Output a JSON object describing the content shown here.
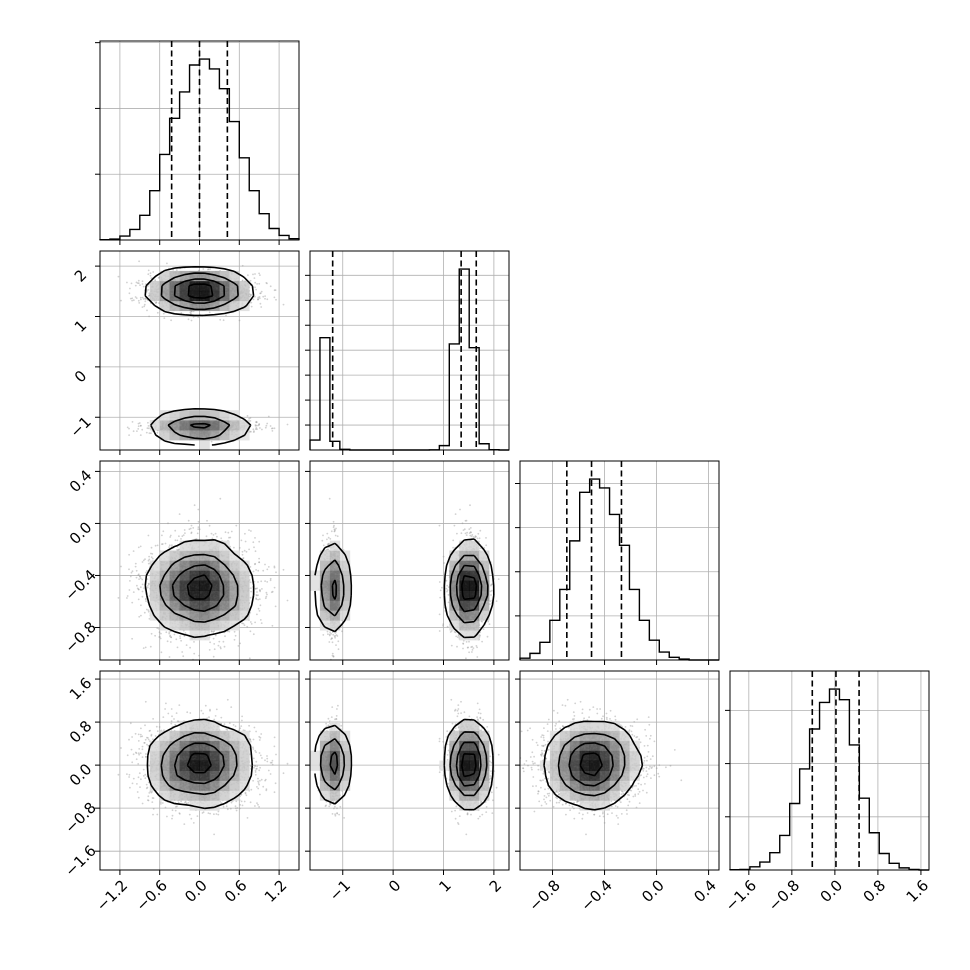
{
  "chart_data": {
    "type": "corner",
    "title": "",
    "dimensions": [
      {
        "id": "p0",
        "range": [
          -1.5,
          1.5
        ],
        "ticks": [
          -1.2,
          -0.6,
          0.0,
          0.6,
          1.2
        ],
        "tick_labels": [
          "−1.2",
          "−0.6",
          "0.0",
          "0.6",
          "1.2"
        ],
        "quantiles": [
          -0.42,
          0.0,
          0.42
        ]
      },
      {
        "id": "p1",
        "range": [
          -1.65,
          2.3
        ],
        "ticks": [
          -1,
          0,
          1,
          2
        ],
        "tick_labels": [
          "−1",
          "0",
          "1",
          "2"
        ],
        "quantiles": [
          -1.2,
          1.35,
          1.65
        ]
      },
      {
        "id": "p2",
        "range": [
          -1.05,
          0.48
        ],
        "ticks": [
          -0.8,
          -0.4,
          0.0,
          0.4
        ],
        "tick_labels": [
          "−0.8",
          "−0.4",
          "0.0",
          "0.4"
        ],
        "quantiles": [
          -0.69,
          -0.5,
          -0.27
        ]
      },
      {
        "id": "p3",
        "range": [
          -1.95,
          1.75
        ],
        "ticks": [
          -1.6,
          -0.8,
          0.0,
          0.8,
          1.6
        ],
        "tick_labels": [
          "−1.6",
          "−0.8",
          "0.0",
          "0.8",
          "1.6"
        ],
        "quantiles": [
          -0.42,
          0.02,
          0.45
        ]
      }
    ],
    "histograms": [
      {
        "dimension": "p0",
        "bin_edges": [
          -1.5,
          -1.35,
          -1.2,
          -1.05,
          -0.9,
          -0.75,
          -0.6,
          -0.45,
          -0.3,
          -0.15,
          0.0,
          0.15,
          0.3,
          0.45,
          0.6,
          0.75,
          0.9,
          1.05,
          1.2,
          1.35,
          1.5
        ],
        "counts": [
          1,
          3,
          12,
          32,
          75,
          150,
          260,
          370,
          450,
          532,
          550,
          520,
          460,
          360,
          250,
          150,
          80,
          35,
          14,
          4
        ],
        "y_ticks": [
          200,
          400,
          600
        ]
      },
      {
        "dimension": "p1",
        "bin_edges": [
          -1.65,
          -1.4525,
          -1.255,
          -1.0575,
          -0.86,
          -0.6625,
          -0.465,
          -0.2675,
          -0.07,
          0.1275,
          0.325,
          0.5225,
          0.72,
          0.9175,
          1.115,
          1.3125,
          1.51,
          1.7075,
          1.905,
          2.1025,
          2.3
        ],
        "counts": [
          80,
          900,
          70,
          5,
          0,
          0,
          0,
          0,
          0,
          0,
          0,
          0,
          1,
          35,
          850,
          1450,
          820,
          50,
          2,
          0
        ],
        "y_ticks": [
          200,
          400,
          600,
          800,
          1000,
          1200,
          1400
        ]
      },
      {
        "dimension": "p2",
        "bin_edges": [
          -1.05,
          -0.9735,
          -0.897,
          -0.8205,
          -0.744,
          -0.6675,
          -0.591,
          -0.5145,
          -0.438,
          -0.3615,
          -0.285,
          -0.2085,
          -0.132,
          -0.0555,
          0.021,
          0.0975,
          0.174,
          0.2505,
          0.327,
          0.4035,
          0.48
        ],
        "counts": [
          4,
          15,
          40,
          90,
          160,
          270,
          380,
          410,
          390,
          330,
          260,
          160,
          90,
          45,
          18,
          6,
          2,
          0,
          0,
          0
        ],
        "y_ticks": [
          100,
          200,
          300,
          400
        ]
      },
      {
        "dimension": "p3",
        "bin_edges": [
          -1.95,
          -1.765,
          -1.58,
          -1.395,
          -1.21,
          -1.025,
          -0.84,
          -0.655,
          -0.47,
          -0.285,
          -0.1,
          0.085,
          0.27,
          0.455,
          0.64,
          0.825,
          1.01,
          1.195,
          1.38,
          1.565,
          1.75
        ],
        "counts": [
          1,
          2,
          12,
          30,
          65,
          130,
          250,
          380,
          530,
          630,
          680,
          640,
          470,
          270,
          140,
          62,
          25,
          8,
          2,
          0
        ],
        "y_ticks": [
          200,
          400,
          600
        ]
      }
    ],
    "joint_panels": [
      {
        "x": "p0",
        "y": "p1"
      },
      {
        "x": "p0",
        "y": "p2"
      },
      {
        "x": "p1",
        "y": "p2"
      },
      {
        "x": "p0",
        "y": "p3"
      },
      {
        "x": "p1",
        "y": "p3"
      },
      {
        "x": "p2",
        "y": "p3"
      }
    ],
    "distribution": {
      "p0": {
        "mean": 0.0,
        "sd": 0.38
      },
      "p1": {
        "modes": [
          {
            "weight": 0.34,
            "mean": -1.2,
            "sd": 0.08
          },
          {
            "weight": 0.66,
            "mean": 1.5,
            "sd": 0.17
          }
        ]
      },
      "p2": {
        "mean": -0.5,
        "sd": 0.17
      },
      "p3": {
        "mean": 0.02,
        "sd": 0.36
      }
    },
    "grid": true,
    "legend": "none",
    "colors": {
      "line": "#000000",
      "grid": "#b0b0b0",
      "scatter": "#9a9a9a",
      "density": "#000000",
      "background": "#ffffff"
    }
  }
}
